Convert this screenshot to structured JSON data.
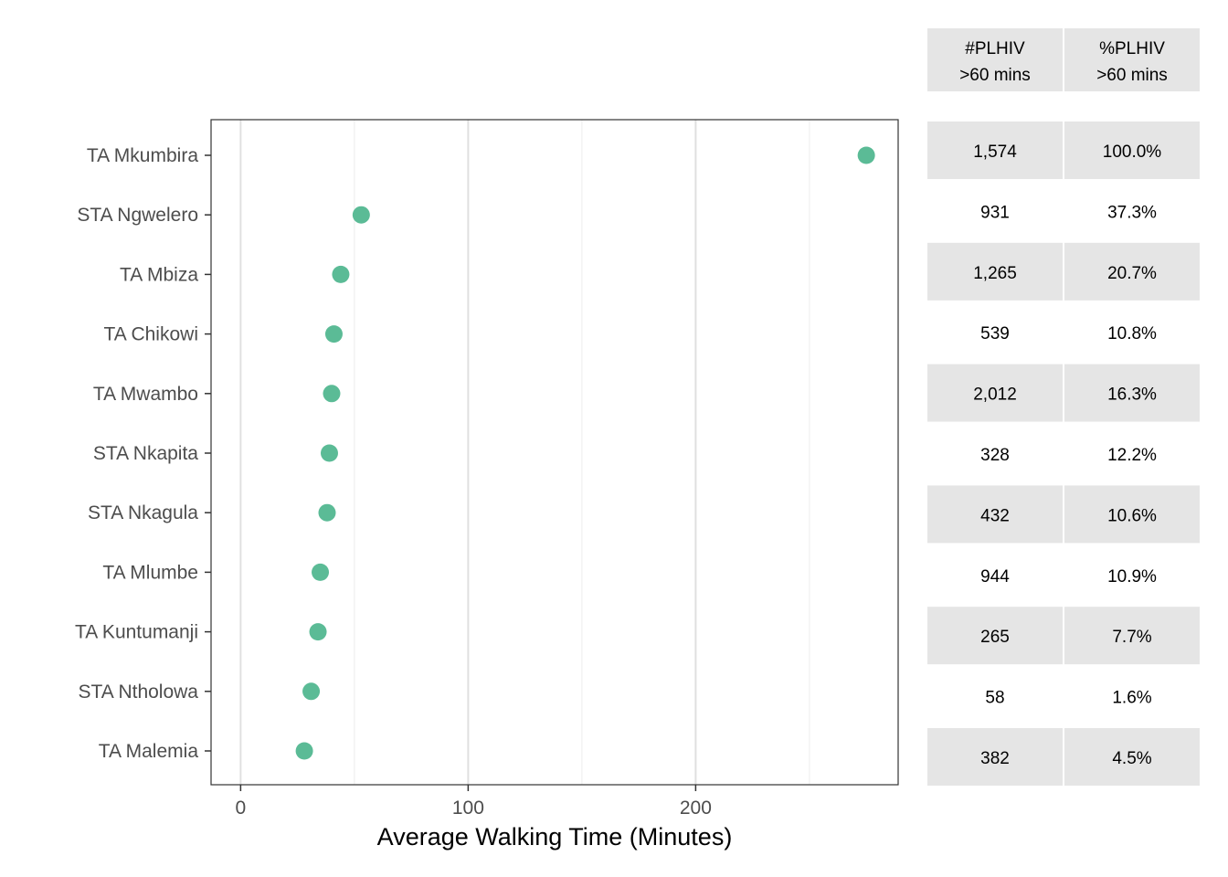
{
  "chart_data": {
    "type": "scatter",
    "title": "",
    "xlabel": "Average Walking Time (Minutes)",
    "ylabel": "",
    "xlim": [
      -13,
      289
    ],
    "x_ticks": [
      0,
      100,
      200
    ],
    "x_tick_labels": [
      "0",
      "100",
      "200"
    ],
    "grid": true,
    "legend": "none",
    "point_color": "#5bbb96",
    "categories": [
      "TA Mkumbira",
      "STA Ngwelero",
      "TA Mbiza",
      "TA Chikowi",
      "TA Mwambo",
      "STA Nkapita",
      "STA Nkagula",
      "TA Mlumbe",
      "TA Kuntumanji",
      "STA Ntholowa",
      "TA Malemia"
    ],
    "values": [
      275,
      53,
      44,
      41,
      40,
      39,
      38,
      35,
      34,
      31,
      28
    ]
  },
  "table": {
    "headers": [
      {
        "line1": "#PLHIV",
        "line2": ">60 mins"
      },
      {
        "line1": "%PLHIV",
        "line2": ">60 mins"
      }
    ],
    "rows": [
      {
        "count": "1,574",
        "pct": "100.0%"
      },
      {
        "count": "931",
        "pct": "37.3%"
      },
      {
        "count": "1,265",
        "pct": "20.7%"
      },
      {
        "count": "539",
        "pct": "10.8%"
      },
      {
        "count": "2,012",
        "pct": "16.3%"
      },
      {
        "count": "328",
        "pct": "12.2%"
      },
      {
        "count": "432",
        "pct": "10.6%"
      },
      {
        "count": "944",
        "pct": "10.9%"
      },
      {
        "count": "265",
        "pct": "7.7%"
      },
      {
        "count": "58",
        "pct": "1.6%"
      },
      {
        "count": "382",
        "pct": "4.5%"
      }
    ],
    "stripe_color": "#e5e5e5"
  }
}
